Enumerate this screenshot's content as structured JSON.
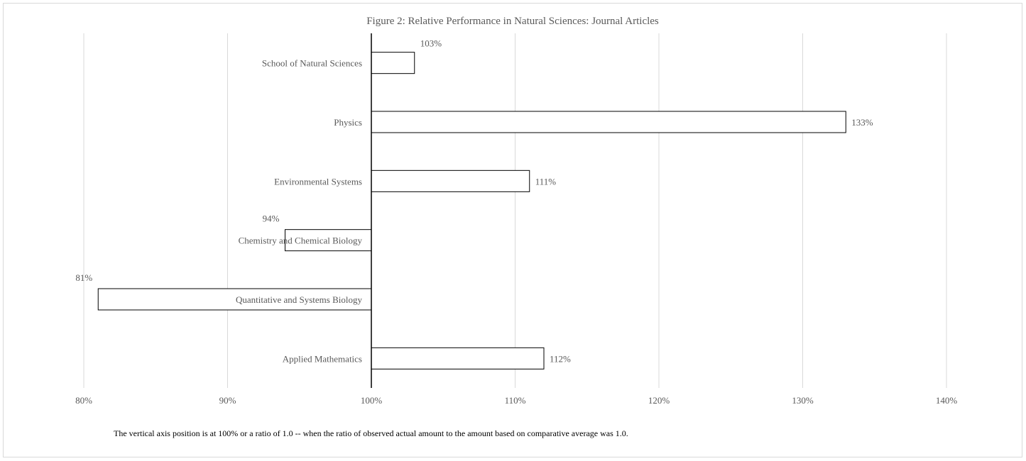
{
  "chart_data": {
    "type": "bar",
    "orientation": "horizontal",
    "title": "Figure 2: Relative Performance in Natural Sciences: Journal Articles",
    "categories": [
      "School of Natural Sciences",
      "Physics",
      "Environmental Systems",
      "Chemistry and Chemical Biology",
      "Quantitative and Systems Biology",
      "Applied Mathematics"
    ],
    "values": [
      103,
      133,
      111,
      94,
      81,
      112
    ],
    "value_labels": [
      "103%",
      "133%",
      "111%",
      "94%",
      "81%",
      "112%"
    ],
    "baseline": 100,
    "xlim": [
      80,
      140
    ],
    "xticks": [
      80,
      90,
      100,
      110,
      120,
      130,
      140
    ],
    "xtick_labels": [
      "80%",
      "90%",
      "100%",
      "110%",
      "120%",
      "130%",
      "140%"
    ],
    "xlabel": "",
    "ylabel": "",
    "grid": true,
    "legend": "none",
    "footnote": "The vertical axis position is at 100% or a ratio of 1.0 -- when the ratio of observed actual amount to the amount based on comparative average was 1.0.",
    "colors": {
      "bar_fill": "#ffffff",
      "bar_stroke": "#000000",
      "grid": "#d9d9d9",
      "axis": "#000000",
      "text": "#595959",
      "title": "#595959",
      "footnote": "#000000"
    }
  }
}
